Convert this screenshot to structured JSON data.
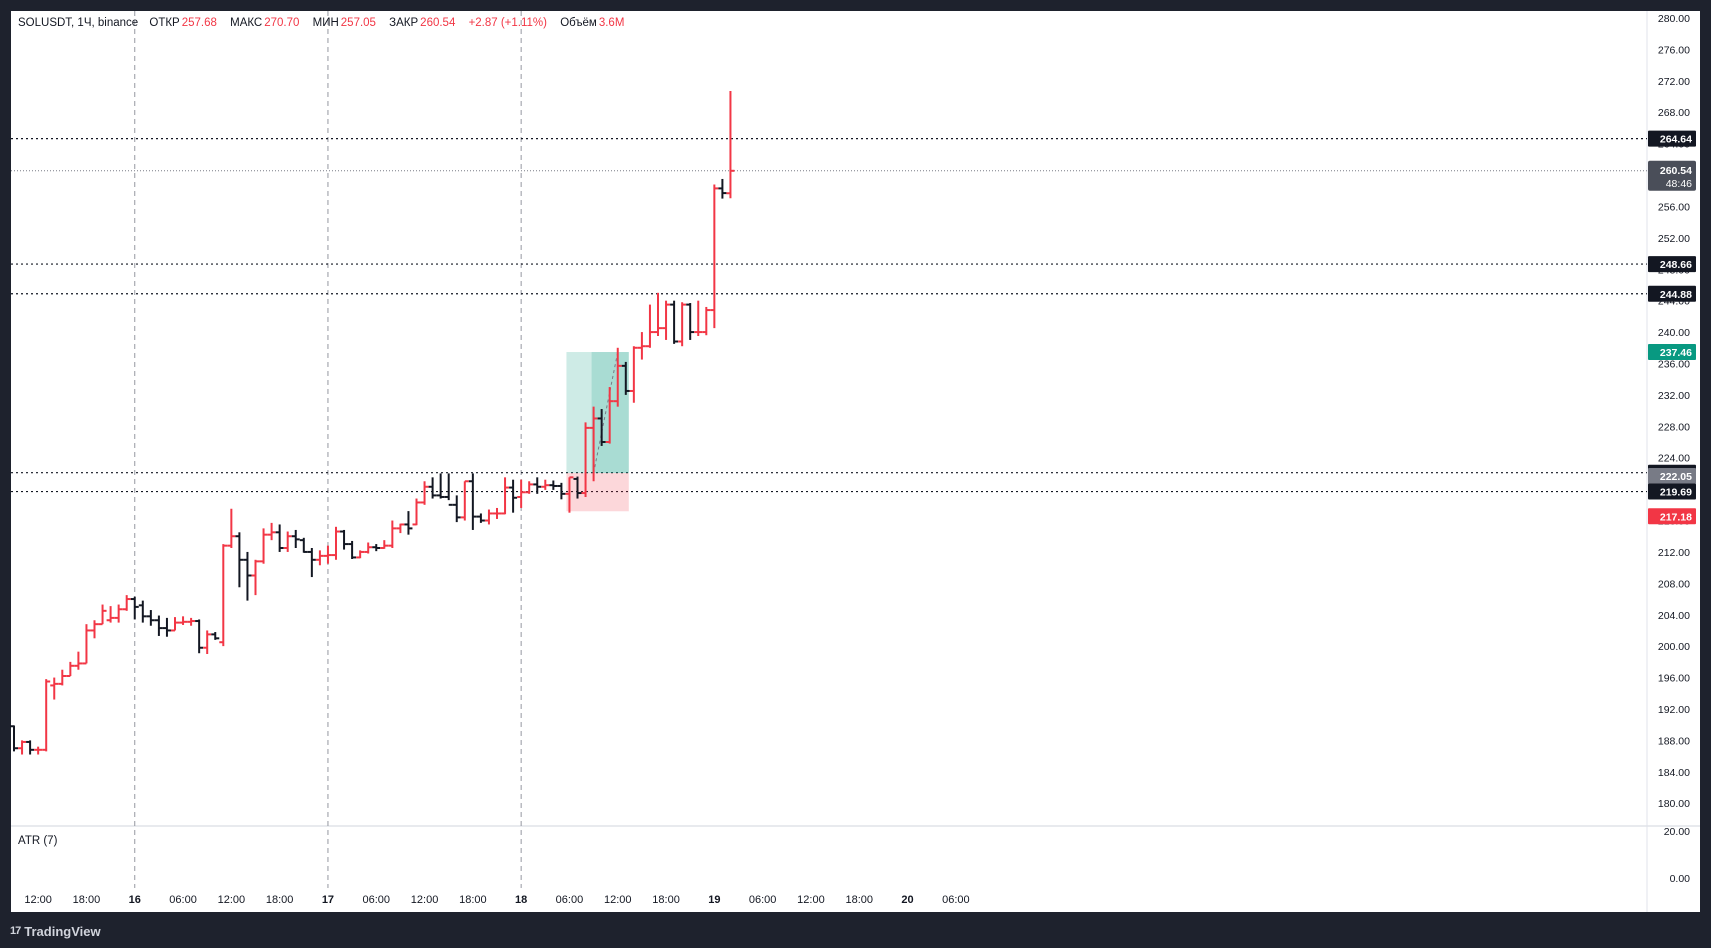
{
  "legend": {
    "symbol": "SOLUSDT, 1Ч, binance",
    "open_label": "ОТКР",
    "open": "257.68",
    "high_label": "МАКС",
    "high": "270.70",
    "low_label": "МИН",
    "low": "257.05",
    "close_label": "ЗАКР",
    "close": "260.54",
    "change": "+2.87 (+1.11%)",
    "volume_label": "Объём",
    "volume": "3.6M"
  },
  "atr_label": "ATR (7)",
  "brand": {
    "name": "TradingView",
    "logo_glyph": "17"
  },
  "colors": {
    "up": "#f23645",
    "down": "#131722",
    "grid": "#e0e3eb",
    "target_zone": "#089981",
    "stop_zone": "#f23645"
  },
  "chart_data": {
    "type": "ohlc",
    "symbol": "SOLUSDT",
    "interval": "1H",
    "exchange": "binance",
    "ylim": [
      178,
      280
    ],
    "y_ticks": [
      "280.00",
      "276.00",
      "272.00",
      "268.00",
      "264.00",
      "260.00",
      "256.00",
      "252.00",
      "248.00",
      "244.00",
      "240.00",
      "236.00",
      "232.00",
      "228.00",
      "224.00",
      "220.00",
      "216.00",
      "212.00",
      "208.00",
      "204.00",
      "200.00",
      "196.00",
      "192.00",
      "188.00",
      "184.00",
      "180.00"
    ],
    "x_ticks": [
      {
        "label": "12:00",
        "bar": 3
      },
      {
        "label": "18:00",
        "bar": 9
      },
      {
        "label": "16",
        "bar": 15
      },
      {
        "label": "06:00",
        "bar": 21
      },
      {
        "label": "12:00",
        "bar": 27
      },
      {
        "label": "18:00",
        "bar": 33
      },
      {
        "label": "17",
        "bar": 39
      },
      {
        "label": "06:00",
        "bar": 45
      },
      {
        "label": "12:00",
        "bar": 51
      },
      {
        "label": "18:00",
        "bar": 57
      },
      {
        "label": "18",
        "bar": 63
      },
      {
        "label": "06:00",
        "bar": 69
      },
      {
        "label": "12:00",
        "bar": 75
      },
      {
        "label": "18:00",
        "bar": 81
      },
      {
        "label": "19",
        "bar": 87
      },
      {
        "label": "06:00",
        "bar": 93
      },
      {
        "label": "12:00",
        "bar": 99
      },
      {
        "label": "18:00",
        "bar": 105
      },
      {
        "label": "20",
        "bar": 111
      },
      {
        "label": "06:00",
        "bar": 117
      }
    ],
    "day_separators": [
      15,
      39,
      63
    ],
    "ohlc": [
      [
        189.8,
        189.9,
        186.6,
        187.0
      ],
      [
        187.0,
        188.0,
        186.2,
        187.8
      ],
      [
        187.8,
        188.0,
        186.2,
        186.8
      ],
      [
        186.8,
        187.2,
        186.2,
        186.8
      ],
      [
        186.8,
        195.8,
        186.6,
        195.5
      ],
      [
        195.0,
        196.0,
        193.2,
        195.2
      ],
      [
        195.2,
        197.0,
        195.0,
        196.2
      ],
      [
        196.2,
        198.0,
        196.2,
        197.5
      ],
      [
        197.5,
        199.3,
        197.0,
        197.8
      ],
      [
        197.8,
        202.8,
        197.8,
        202.0
      ],
      [
        202.0,
        203.3,
        201.0,
        202.8
      ],
      [
        202.8,
        205.3,
        202.8,
        204.5
      ],
      [
        203.3,
        205.1,
        203.0,
        203.6
      ],
      [
        203.6,
        205.3,
        203.0,
        204.7
      ],
      [
        204.7,
        206.5,
        204.5,
        206.0
      ],
      [
        206.0,
        206.3,
        203.4,
        205.0
      ],
      [
        205.2,
        205.8,
        203.0,
        203.8
      ],
      [
        203.8,
        204.6,
        202.6,
        203.3
      ],
      [
        203.3,
        203.9,
        201.3,
        202.3
      ],
      [
        202.3,
        203.6,
        201.2,
        202.0
      ],
      [
        202.0,
        203.7,
        202.0,
        203.0
      ],
      [
        203.0,
        203.8,
        202.7,
        203.1
      ],
      [
        203.1,
        203.6,
        202.6,
        203.2
      ],
      [
        203.2,
        203.4,
        199.1,
        199.8
      ],
      [
        199.8,
        202.0,
        199.0,
        201.5
      ],
      [
        201.5,
        201.8,
        200.8,
        201.0
      ],
      [
        200.5,
        213.0,
        200.0,
        212.8
      ],
      [
        212.8,
        217.5,
        212.5,
        214.0
      ],
      [
        214.0,
        214.5,
        207.5,
        211.0
      ],
      [
        211.0,
        212.0,
        205.8,
        209.0
      ],
      [
        209.0,
        211.0,
        206.5,
        210.8
      ],
      [
        210.8,
        215.0,
        210.5,
        214.2
      ],
      [
        214.2,
        215.7,
        213.5,
        214.5
      ],
      [
        214.5,
        215.5,
        212.0,
        212.5
      ],
      [
        212.5,
        214.6,
        212.0,
        214.0
      ],
      [
        214.0,
        214.8,
        212.5,
        213.6
      ],
      [
        213.5,
        213.8,
        211.9,
        212.0
      ],
      [
        212.0,
        212.5,
        208.8,
        211.0
      ],
      [
        211.0,
        212.2,
        210.3,
        211.5
      ],
      [
        211.5,
        212.8,
        210.5,
        211.6
      ],
      [
        211.6,
        215.2,
        211.0,
        214.6
      ],
      [
        214.6,
        214.8,
        212.3,
        213.0
      ],
      [
        213.0,
        213.4,
        211.1,
        211.3
      ],
      [
        211.3,
        212.2,
        211.2,
        212.0
      ],
      [
        212.0,
        213.2,
        211.8,
        212.6
      ],
      [
        212.6,
        213.0,
        212.1,
        212.5
      ],
      [
        212.5,
        213.5,
        212.4,
        212.8
      ],
      [
        212.8,
        216.0,
        212.5,
        215.0
      ],
      [
        215.0,
        215.6,
        214.4,
        215.5
      ],
      [
        215.5,
        217.2,
        214.2,
        215.0
      ],
      [
        215.5,
        218.8,
        215.4,
        218.3
      ],
      [
        218.3,
        221.0,
        218.0,
        220.3
      ],
      [
        220.3,
        221.5,
        218.8,
        219.2
      ],
      [
        219.2,
        222.0,
        218.8,
        219.0
      ],
      [
        219.0,
        222.0,
        218.6,
        218.0
      ],
      [
        218.0,
        219.2,
        215.8,
        216.4
      ],
      [
        216.4,
        221.0,
        216.0,
        221.0
      ],
      [
        221.0,
        222.0,
        214.8,
        216.5
      ],
      [
        216.5,
        216.9,
        215.7,
        216.0
      ],
      [
        216.0,
        217.4,
        215.5,
        216.9
      ],
      [
        216.9,
        217.6,
        216.2,
        216.9
      ],
      [
        216.9,
        221.5,
        216.8,
        220.2
      ],
      [
        220.2,
        221.2,
        217.0,
        218.9
      ],
      [
        219.0,
        221.2,
        217.6,
        219.6
      ],
      [
        219.6,
        221.0,
        219.4,
        220.6
      ],
      [
        220.6,
        221.5,
        219.4,
        220.3
      ],
      [
        220.3,
        221.2,
        219.9,
        220.5
      ],
      [
        220.5,
        221.1,
        219.9,
        220.4
      ],
      [
        220.4,
        220.8,
        218.7,
        219.4
      ],
      [
        219.4,
        221.5,
        217.0,
        221.5
      ],
      [
        221.3,
        221.6,
        218.8,
        219.5
      ],
      [
        219.5,
        228.5,
        219.0,
        227.8
      ],
      [
        227.8,
        230.5,
        221.0,
        229.0
      ],
      [
        229.0,
        230.2,
        225.5,
        226.0
      ],
      [
        226.0,
        233.0,
        225.8,
        231.2
      ],
      [
        231.2,
        238.0,
        230.5,
        235.7
      ],
      [
        235.7,
        236.2,
        232.0,
        232.5
      ],
      [
        232.5,
        238.2,
        231.0,
        238.0
      ],
      [
        238.0,
        240.0,
        236.5,
        238.2
      ],
      [
        238.2,
        243.5,
        238.0,
        240.0
      ],
      [
        240.0,
        245.0,
        239.5,
        240.5
      ],
      [
        240.5,
        244.0,
        239.0,
        243.5
      ],
      [
        243.5,
        244.0,
        238.5,
        238.8
      ],
      [
        238.8,
        243.8,
        238.2,
        243.5
      ],
      [
        243.5,
        243.7,
        239.0,
        240.0
      ],
      [
        240.0,
        244.0,
        239.5,
        240.0
      ],
      [
        240.0,
        243.2,
        239.6,
        242.8
      ],
      [
        242.8,
        258.8,
        240.5,
        258.3
      ],
      [
        258.3,
        259.5,
        257.0,
        257.7
      ],
      [
        257.68,
        270.7,
        257.05,
        260.54
      ]
    ],
    "horizontal_levels": [
      264.64,
      248.66,
      244.88,
      222.09,
      219.69
    ],
    "current_price": "260.54",
    "countdown": "48:46",
    "price_labels": [
      {
        "value": 264.64,
        "text": "264.64",
        "style": "dark"
      },
      {
        "value": 248.66,
        "text": "248.66",
        "style": "dark"
      },
      {
        "value": 244.88,
        "text": "244.88",
        "style": "dark"
      },
      {
        "value": 237.46,
        "text": "237.46",
        "style": "green"
      },
      {
        "value": 222.09,
        "text": "222.09",
        "style": "dark"
      },
      {
        "value": 222.05,
        "text": "222.05",
        "style": "gray"
      },
      {
        "value": 219.69,
        "text": "219.69",
        "style": "dark"
      },
      {
        "value": 217.18,
        "text": "217.18",
        "style": "red"
      }
    ],
    "long_position": {
      "start_bar": 69,
      "end_bar": 76,
      "entry": 222.05,
      "target": 237.46,
      "stop": 217.18
    },
    "atr": {
      "name": "ATR (7)",
      "y_ticks": [
        "20.00",
        "0.00"
      ]
    }
  }
}
